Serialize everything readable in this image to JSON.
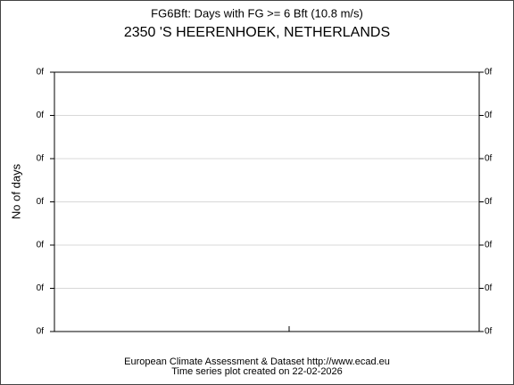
{
  "chart_data": {
    "type": "line",
    "title": "FG6Bft: Days with FG >= 6 Bft (10.8 m/s)",
    "subtitle": "2350 'S HEERENHOEK, NETHERLANDS",
    "y_label": "No of days",
    "ylim": [
      0,
      6
    ],
    "yticks": [
      {
        "value": 0,
        "label": "0f"
      },
      {
        "value": 1,
        "label": "0f"
      },
      {
        "value": 2,
        "label": "0f"
      },
      {
        "value": 3,
        "label": "0f"
      },
      {
        "value": 4,
        "label": "0f"
      },
      {
        "value": 5,
        "label": "0f"
      },
      {
        "value": 6,
        "label": "0f"
      }
    ],
    "grid": true,
    "series": [],
    "footer": [
      "European Climate Assessment & Dataset  http://www.ecad.eu",
      "Time series plot created on 22-02-2026"
    ]
  }
}
